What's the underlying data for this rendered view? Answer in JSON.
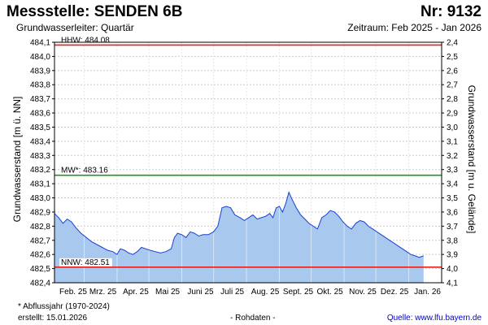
{
  "header": {
    "title": "Messstelle: SENDEN 6B",
    "number": "Nr: 9132",
    "aquifer": "Grundwasserleiter: Quartär",
    "period": "Zeitraum: Feb 2025 - Jan 2026"
  },
  "footer": {
    "note": "* Abflussjahr (1970-2024)",
    "created": "erstellt:  15.01.2026",
    "raw": "- Rohdaten -",
    "source": "Quelle:  www.lfu.bayern.de"
  },
  "colors": {
    "fill": "#a8c8ee",
    "line": "#1a3fd6",
    "hhw": "#e8201a",
    "mw": "#1a9a1a",
    "nnw": "#e8201a",
    "grid": "#cccccc"
  },
  "chart_data": {
    "type": "area",
    "ylabel": "Grundwasserstand [m ü. NN]",
    "y2label": "Grundwasserstand [m u. Gelände]",
    "ylim": [
      482.4,
      484.1
    ],
    "yticks": [
      "484,1",
      "484,0",
      "483,9",
      "483,8",
      "483,7",
      "483,6",
      "483,5",
      "483,4",
      "483,3",
      "483,2",
      "483,1",
      "483,0",
      "482,9",
      "482,8",
      "482,7",
      "482,6",
      "482,5",
      "482,4"
    ],
    "y2ticks": [
      "2,4",
      "2,5",
      "2,6",
      "2,7",
      "2,8",
      "2,9",
      "3,0",
      "3,1",
      "3,2",
      "3,3",
      "3,4",
      "3,5",
      "3,6",
      "3,7",
      "3,8",
      "3,9",
      "4,0",
      "4,1"
    ],
    "xlim": [
      0,
      365
    ],
    "xticks": [
      {
        "label": "Feb. 25",
        "x": 0
      },
      {
        "label": "Mrz. 25",
        "x": 28
      },
      {
        "label": "Apr. 25",
        "x": 59
      },
      {
        "label": "Mai 25",
        "x": 89
      },
      {
        "label": "Juni 25",
        "x": 120
      },
      {
        "label": "Juli 25",
        "x": 150
      },
      {
        "label": "Aug. 25",
        "x": 181
      },
      {
        "label": "Sept. 25",
        "x": 212
      },
      {
        "label": "Okt. 25",
        "x": 242
      },
      {
        "label": "Nov. 25",
        "x": 273
      },
      {
        "label": "Dez. 25",
        "x": 303
      },
      {
        "label": "Jan. 26",
        "x": 334
      }
    ],
    "reference_lines": [
      {
        "label": "HHW: 484.08",
        "value": 484.08,
        "color": "#e8201a"
      },
      {
        "label": "MW*: 483.16",
        "value": 483.16,
        "color": "#1a9a1a"
      },
      {
        "label": "NNW: 482.51",
        "value": 482.51,
        "color": "#e8201a"
      }
    ],
    "series": [
      {
        "x": [
          0,
          4,
          8,
          12,
          16,
          20,
          25,
          30,
          35,
          40,
          45,
          50,
          55,
          59,
          62,
          66,
          70,
          74,
          78,
          82,
          86,
          90,
          95,
          100,
          105,
          110,
          113,
          116,
          120,
          124,
          128,
          132,
          136,
          140,
          145,
          150,
          154,
          158,
          162,
          166,
          170,
          175,
          179,
          183,
          187,
          191,
          195,
          199,
          203,
          206,
          209,
          212,
          215,
          218,
          221,
          224,
          228,
          232,
          236,
          240,
          244,
          248,
          252,
          256,
          260,
          264,
          268,
          272,
          276,
          280,
          284,
          288,
          292,
          296,
          300,
          304,
          308,
          312,
          316,
          320,
          324,
          328,
          332,
          336,
          340,
          344,
          348
        ],
        "values": [
          482.89,
          482.86,
          482.82,
          482.85,
          482.83,
          482.79,
          482.75,
          482.72,
          482.69,
          482.67,
          482.65,
          482.63,
          482.62,
          482.6,
          482.64,
          482.63,
          482.61,
          482.6,
          482.62,
          482.65,
          482.64,
          482.63,
          482.62,
          482.61,
          482.62,
          482.64,
          482.72,
          482.75,
          482.74,
          482.72,
          482.76,
          482.75,
          482.73,
          482.74,
          482.74,
          482.76,
          482.8,
          482.93,
          482.94,
          482.93,
          482.88,
          482.86,
          482.84,
          482.86,
          482.88,
          482.85,
          482.86,
          482.87,
          482.89,
          482.86,
          482.93,
          482.94,
          482.9,
          482.96,
          483.04,
          482.99,
          482.93,
          482.88,
          482.85,
          482.82,
          482.8,
          482.78,
          482.86,
          482.88,
          482.91,
          482.9,
          482.87,
          482.83,
          482.8,
          482.78,
          482.82,
          482.84,
          482.83,
          482.8,
          482.78,
          482.76,
          482.74,
          482.72,
          482.7,
          482.68,
          482.66,
          482.64,
          482.62,
          482.6,
          482.59,
          482.58,
          482.59
        ]
      }
    ]
  }
}
